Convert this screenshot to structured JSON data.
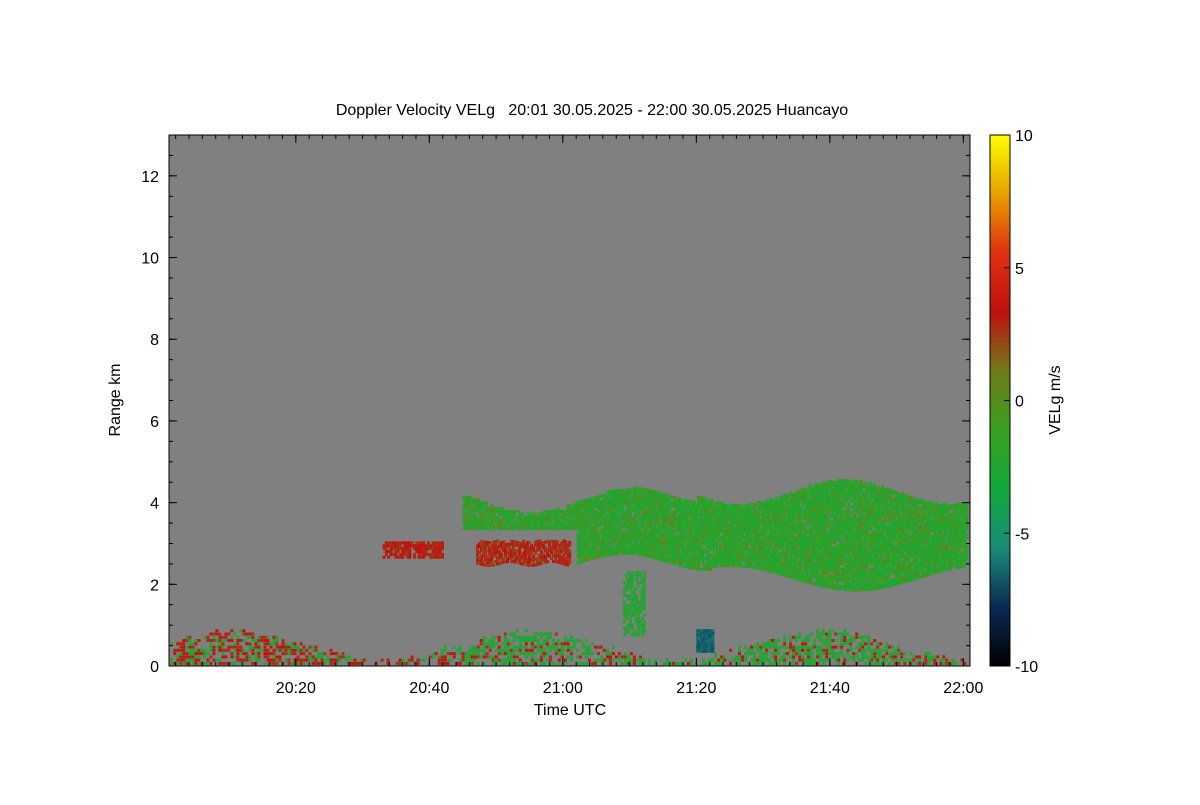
{
  "chart_data": {
    "type": "heatmap",
    "title": "Doppler Velocity VELg   20:01 30.05.2025 - 22:00 30.05.2025 Huancayo",
    "xlabel": "Time UTC",
    "ylabel": "Range km",
    "x_range_minutes": [
      1,
      121
    ],
    "x_ticks": [
      {
        "minute": 20,
        "label": "20:20"
      },
      {
        "minute": 40,
        "label": "20:40"
      },
      {
        "minute": 60,
        "label": "21:00"
      },
      {
        "minute": 80,
        "label": "21:20"
      },
      {
        "minute": 100,
        "label": "21:40"
      },
      {
        "minute": 120,
        "label": "22:00"
      }
    ],
    "ylim": [
      0,
      13
    ],
    "y_ticks": [
      0,
      2,
      4,
      6,
      8,
      10,
      12
    ],
    "colorbar": {
      "label": "VELg m/s",
      "range": [
        -10,
        10
      ],
      "ticks": [
        -10,
        -5,
        0,
        5,
        10
      ],
      "colormap": [
        "#000000",
        "#0b2a55",
        "#1b8a7a",
        "#13a83a",
        "#3aa020",
        "#6f7a1a",
        "#c01010",
        "#e03010",
        "#e8a000",
        "#ffff00"
      ]
    },
    "background_color": "#808080",
    "echo_regions": [
      {
        "t": [
          2,
          120
        ],
        "range_km": [
          0.05,
          0.9
        ],
        "velocity": "mixed",
        "description": "surface layer"
      },
      {
        "t": [
          33,
          42
        ],
        "range_km": [
          2.7,
          3.1
        ],
        "velocity": 2.5
      },
      {
        "t": [
          47,
          61
        ],
        "range_km": [
          2.5,
          3.1
        ],
        "velocity": 2.5
      },
      {
        "t": [
          45,
          120
        ],
        "range_km": [
          2.2,
          4.7
        ],
        "velocity": -2
      },
      {
        "t": [
          80,
          82
        ],
        "range_km": [
          0.4,
          0.9
        ],
        "velocity": -6
      }
    ]
  }
}
